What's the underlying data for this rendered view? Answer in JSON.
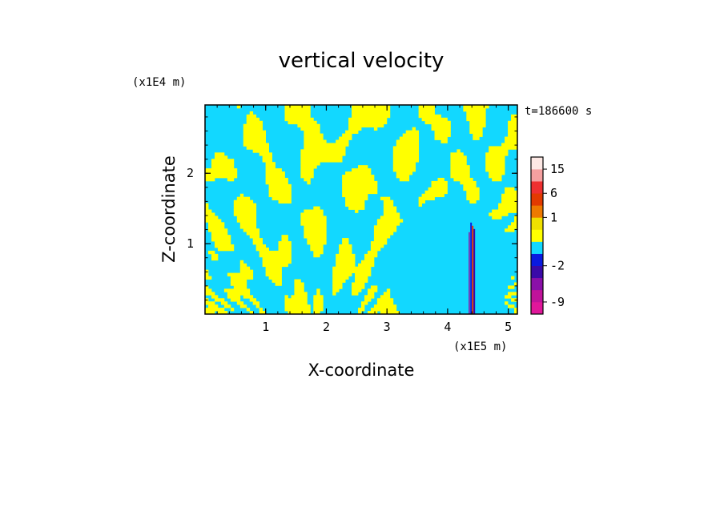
{
  "chart_data": {
    "type": "heatmap",
    "title": "vertical velocity",
    "xlabel": "X-coordinate",
    "ylabel": "Z-coordinate",
    "x_scale_label": "(x1E5 m)",
    "y_scale_label": "(x1E4 m)",
    "time_label": "t=186600 s",
    "xlim": [
      0,
      5.15
    ],
    "ylim": [
      0,
      2.97
    ],
    "x_ticks": [
      {
        "value": 1,
        "label": "1"
      },
      {
        "value": 2,
        "label": "2"
      },
      {
        "value": 3,
        "label": "3"
      },
      {
        "value": 4,
        "label": "4"
      },
      {
        "value": 5,
        "label": "5"
      }
    ],
    "y_ticks": [
      {
        "value": 1,
        "label": "1"
      },
      {
        "value": 2,
        "label": "2"
      }
    ],
    "colorbar": {
      "bands": [
        {
          "lower": -12,
          "upper": -9,
          "color": "#e0179a"
        },
        {
          "lower": -9,
          "upper": -6,
          "color": "#c0139a"
        },
        {
          "lower": -6,
          "upper": -4,
          "color": "#8a10a8"
        },
        {
          "lower": -4,
          "upper": -2,
          "color": "#3a0aa8"
        },
        {
          "lower": -2,
          "upper": -1,
          "color": "#0a1ae0"
        },
        {
          "lower": -1,
          "upper": 0,
          "color": "#12d8ff"
        },
        {
          "lower": 0,
          "upper": 0.5,
          "color": "#ffff00"
        },
        {
          "lower": 0.5,
          "upper": 1,
          "color": "#f0e000"
        },
        {
          "lower": 1,
          "upper": 3,
          "color": "#ee7a00"
        },
        {
          "lower": 3,
          "upper": 6,
          "color": "#e23a00"
        },
        {
          "lower": 6,
          "upper": 10,
          "color": "#ee3030"
        },
        {
          "lower": 10,
          "upper": 15,
          "color": "#f5a0a0"
        },
        {
          "lower": 15,
          "upper": 22,
          "color": "#fde8e4"
        }
      ],
      "tick_labels": [
        {
          "value": 15,
          "label": "15"
        },
        {
          "value": 6,
          "label": "6"
        },
        {
          "value": 1,
          "label": "1"
        },
        {
          "value": -2,
          "label": "-2"
        },
        {
          "value": -9,
          "label": "-9"
        }
      ]
    },
    "field": {
      "dominant_colors": {
        "negative": "#12d8ff",
        "positive": "#ffff00"
      },
      "updraft_column_x": 4.4,
      "updraft_column_top_z": 1.3
    }
  }
}
